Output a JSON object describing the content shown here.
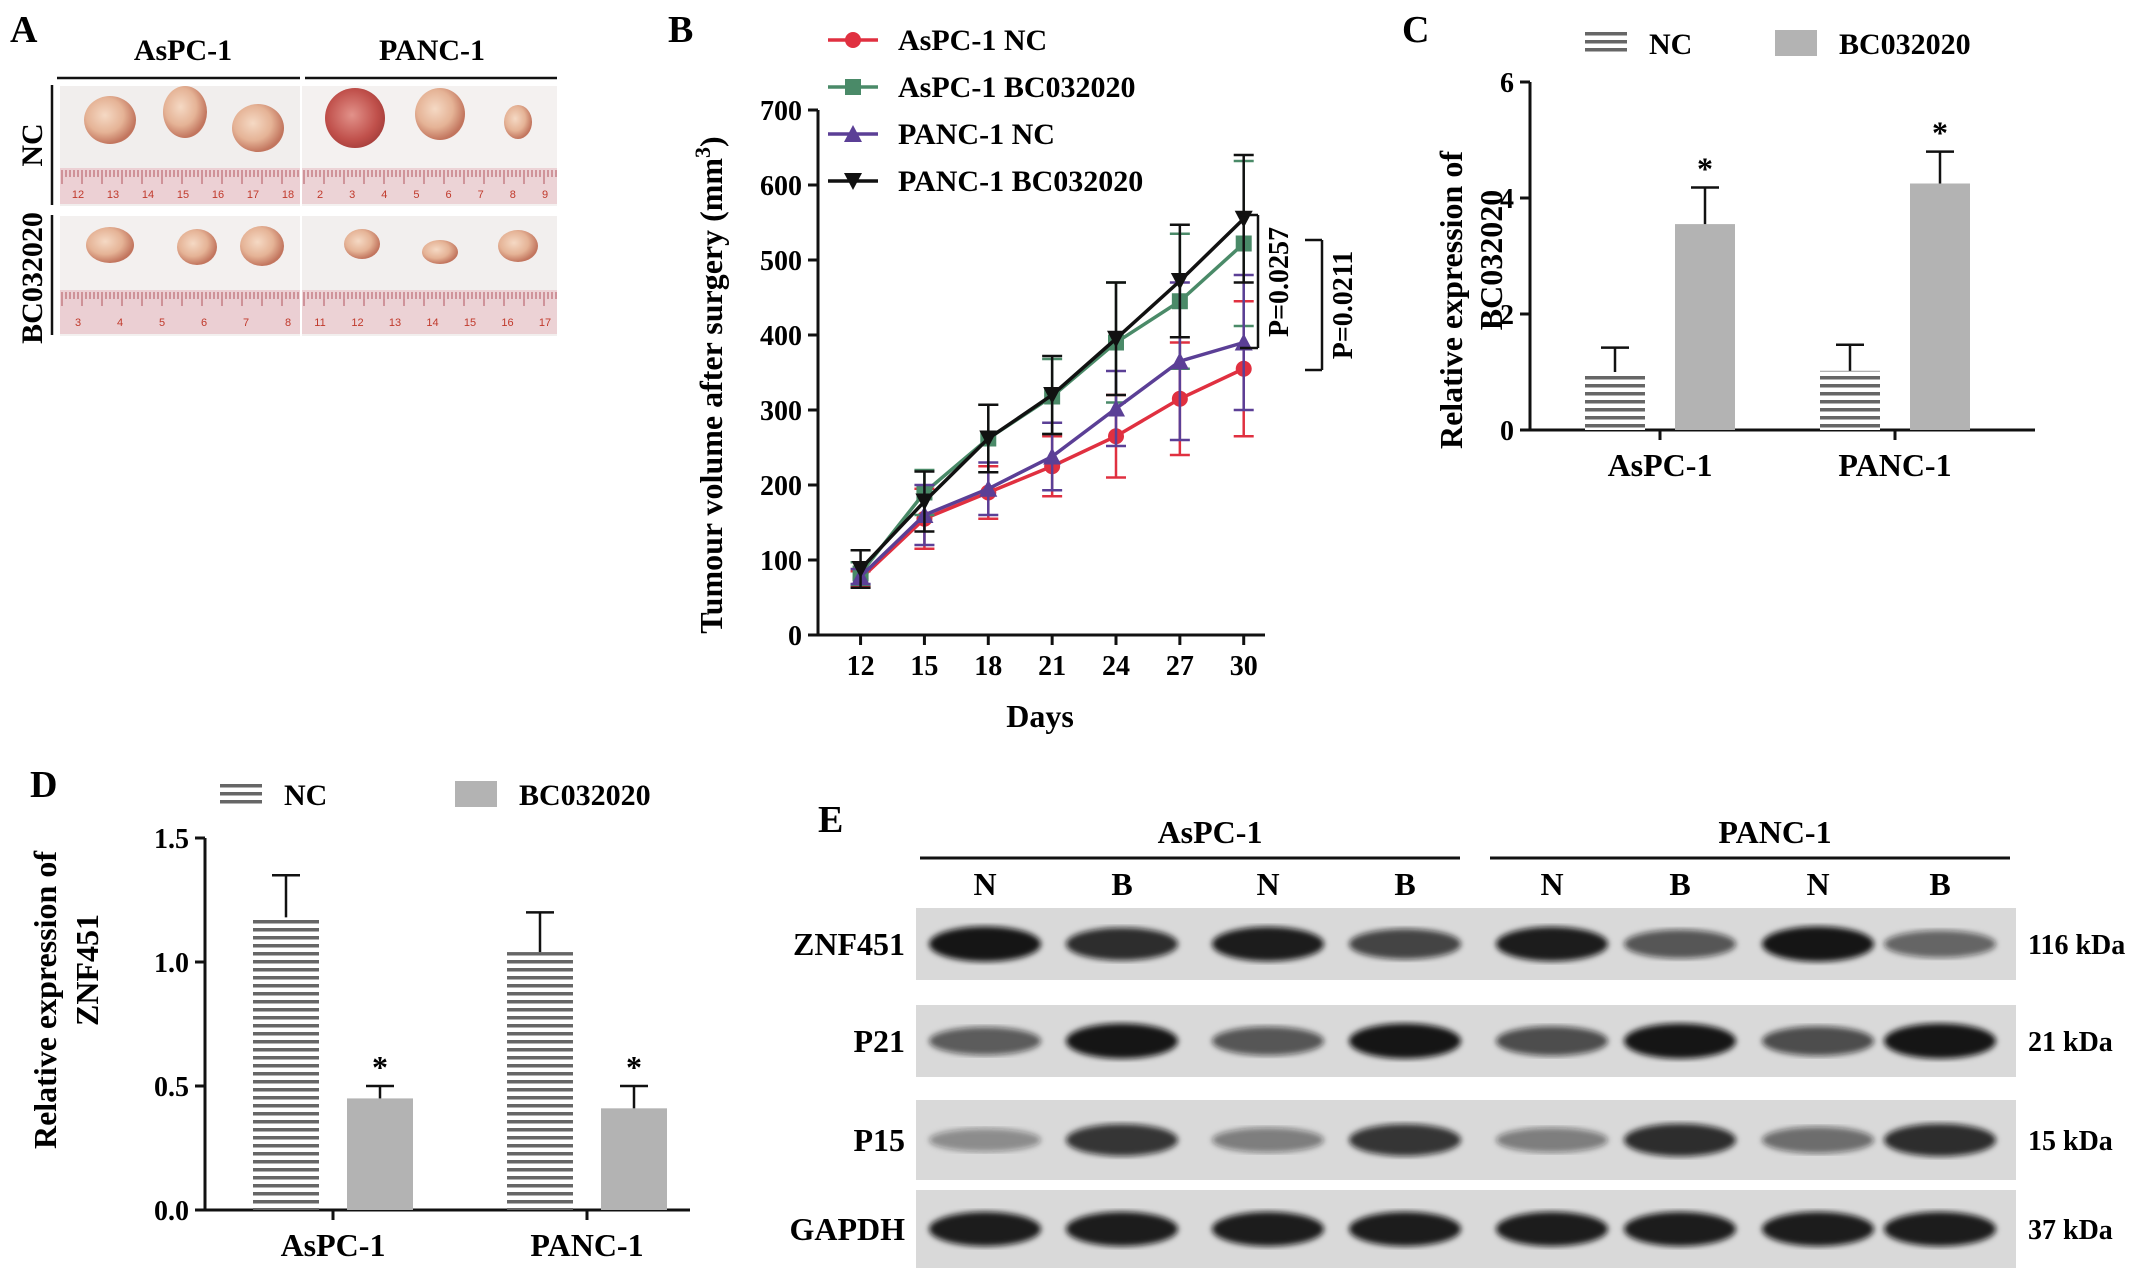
{
  "panels": {
    "A": {
      "letter": "A",
      "columns": [
        "AsPC-1",
        "PANC-1"
      ],
      "rows": [
        "NC",
        "BC032020"
      ],
      "ruler_top_left": [
        "12",
        "13",
        "14",
        "15",
        "16",
        "17",
        "18"
      ],
      "ruler_top_right": [
        "2",
        "3",
        "4",
        "5",
        "6",
        "7",
        "8",
        "9"
      ],
      "ruler_bot_left": [
        "3",
        "4",
        "5",
        "6",
        "7",
        "8"
      ],
      "ruler_bot_right": [
        "11",
        "12",
        "13",
        "14",
        "15",
        "16",
        "17"
      ],
      "colors": {
        "ruler": "#e8c6cc",
        "tumor": "#e8b89c",
        "tumor_dark": "#c46a5a",
        "backdrop": "#f3efee"
      }
    },
    "B": {
      "letter": "B",
      "pvalues": [
        "P=0.0257",
        "P=0.0211"
      ]
    },
    "C": {
      "letter": "C",
      "star": "*"
    },
    "D": {
      "letter": "D",
      "star": "*"
    },
    "E": {
      "letter": "E",
      "groups": [
        "AsPC-1",
        "PANC-1"
      ],
      "lanes": [
        "N",
        "B",
        "N",
        "B",
        "N",
        "B",
        "N",
        "B"
      ],
      "proteins": [
        {
          "name": "ZNF451",
          "kda": "116 kDa",
          "intensity": [
            0.95,
            0.8,
            0.9,
            0.65,
            0.9,
            0.55,
            0.95,
            0.45
          ]
        },
        {
          "name": "P21",
          "kda": "21 kDa",
          "intensity": [
            0.5,
            0.95,
            0.55,
            0.95,
            0.6,
            0.95,
            0.6,
            0.95
          ]
        },
        {
          "name": "P15",
          "kda": "15 kDa",
          "intensity": [
            0.2,
            0.75,
            0.3,
            0.75,
            0.3,
            0.8,
            0.4,
            0.8
          ]
        },
        {
          "name": "GAPDH",
          "kda": "37 kDa",
          "intensity": [
            0.9,
            0.9,
            0.9,
            0.9,
            0.9,
            0.9,
            0.9,
            0.9
          ]
        }
      ],
      "colors": {
        "membrane": "#d9d9d9",
        "band": "#111111"
      }
    }
  },
  "chart_data": [
    {
      "panel": "B",
      "type": "line",
      "xlabel": "Days",
      "ylabel": "Tumour volume after surgery (mm",
      "ylabel_sup": "3",
      "ylabel_close": ")",
      "x": [
        12,
        15,
        18,
        21,
        24,
        27,
        30
      ],
      "xlim": [
        10,
        31
      ],
      "ylim": [
        0,
        700
      ],
      "yticks": [
        0,
        100,
        200,
        300,
        400,
        500,
        600,
        700
      ],
      "series": [
        {
          "name": "AsPC-1 NC",
          "color": "#e03040",
          "marker": "circle",
          "values": [
            75,
            155,
            190,
            225,
            265,
            315,
            355
          ],
          "err": [
            10,
            40,
            35,
            40,
            55,
            75,
            90
          ]
        },
        {
          "name": "AsPC-1 BC032020",
          "color": "#4a8a68",
          "marker": "square",
          "values": [
            82,
            190,
            262,
            318,
            390,
            445,
            522
          ],
          "err": [
            15,
            30,
            45,
            50,
            80,
            90,
            110
          ]
        },
        {
          "name": "PANC-1 NC",
          "color": "#5b3f96",
          "marker": "triangle",
          "values": [
            78,
            160,
            195,
            238,
            302,
            365,
            390
          ],
          "err": [
            10,
            40,
            35,
            45,
            50,
            105,
            90
          ]
        },
        {
          "name": "PANC-1 BC032020",
          "color": "#111111",
          "marker": "triangle-down",
          "values": [
            88,
            178,
            262,
            320,
            395,
            472,
            555
          ],
          "err": [
            25,
            40,
            45,
            52,
            75,
            75,
            85
          ]
        }
      ]
    },
    {
      "panel": "C",
      "type": "bar",
      "ylabel_lines": [
        "Relative expression of",
        "BC032020"
      ],
      "categories": [
        "AsPC-1",
        "PANC-1"
      ],
      "ylim": [
        0,
        6
      ],
      "yticks": [
        0,
        2,
        4,
        6
      ],
      "series": [
        {
          "name": "NC",
          "pattern": "hlines",
          "values": [
            1.0,
            1.02
          ],
          "err": [
            0.42,
            0.45
          ]
        },
        {
          "name": "BC032020",
          "color": "#b3b3b3",
          "values": [
            3.55,
            4.25
          ],
          "err": [
            0.63,
            0.55
          ]
        }
      ]
    },
    {
      "panel": "D",
      "type": "bar",
      "ylabel_lines": [
        "Relative expression of",
        "ZNF451"
      ],
      "categories": [
        "AsPC-1",
        "PANC-1"
      ],
      "ylim": [
        0,
        1.5
      ],
      "yticks": [
        "0.0",
        "0.5",
        "1.0",
        "1.5"
      ],
      "series": [
        {
          "name": "NC",
          "pattern": "hlines",
          "values": [
            1.18,
            1.04
          ],
          "err": [
            0.17,
            0.16
          ]
        },
        {
          "name": "BC032020",
          "color": "#b3b3b3",
          "values": [
            0.45,
            0.41
          ],
          "err": [
            0.05,
            0.09
          ]
        }
      ]
    }
  ]
}
